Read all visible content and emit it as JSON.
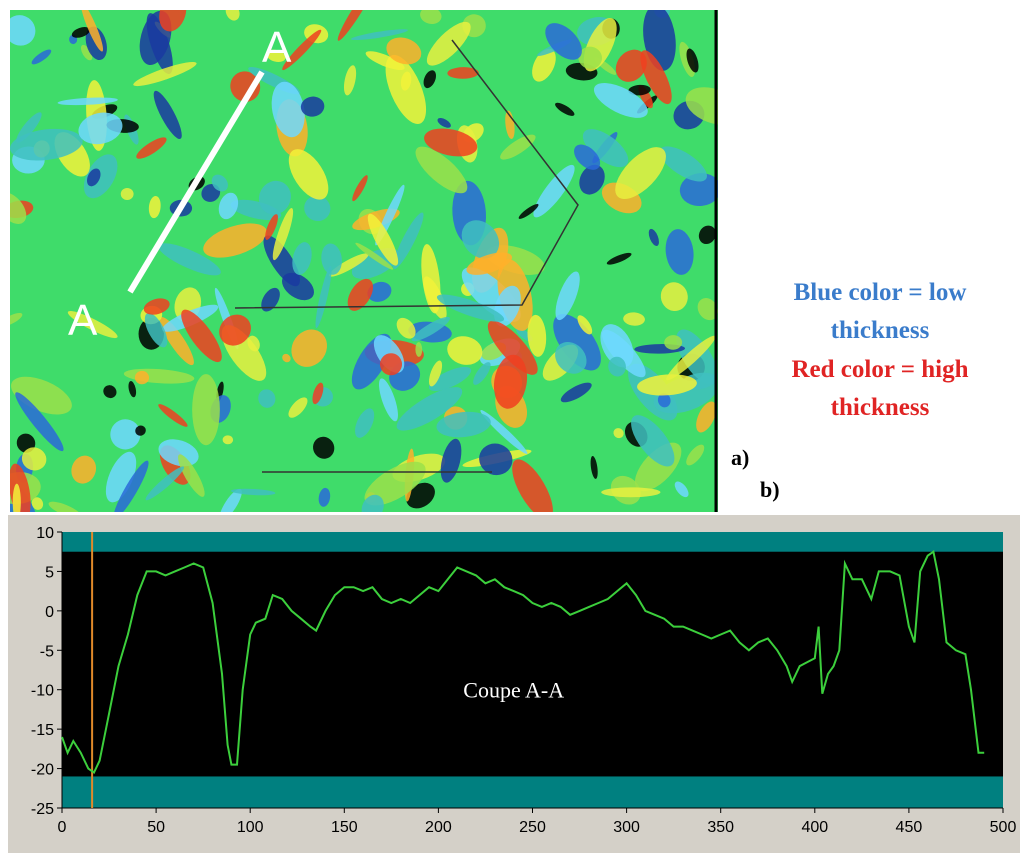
{
  "figure": {
    "map_labels": [
      "A",
      "A"
    ],
    "legend_blue": [
      "Blue color = low",
      "thickness"
    ],
    "legend_red": [
      "Red color = high",
      "thickness"
    ],
    "panel_a": "a)",
    "panel_b": "b)"
  },
  "chart_data": {
    "type": "line",
    "annotation": "Coupe A-A",
    "x": [
      0,
      3,
      6,
      10,
      14,
      17,
      20,
      25,
      30,
      35,
      40,
      45,
      50,
      55,
      60,
      65,
      70,
      75,
      80,
      85,
      88,
      90,
      93,
      96,
      100,
      103,
      108,
      112,
      117,
      122,
      127,
      132,
      135,
      140,
      145,
      150,
      155,
      160,
      165,
      170,
      175,
      180,
      185,
      190,
      195,
      200,
      205,
      210,
      215,
      220,
      225,
      230,
      235,
      240,
      245,
      250,
      255,
      260,
      265,
      270,
      275,
      280,
      285,
      290,
      295,
      300,
      305,
      310,
      315,
      320,
      325,
      330,
      335,
      340,
      345,
      350,
      355,
      360,
      365,
      370,
      375,
      380,
      385,
      388,
      392,
      396,
      400,
      402,
      404,
      407,
      410,
      413,
      416,
      420,
      425,
      430,
      434,
      440,
      445,
      450,
      453,
      456,
      460,
      463,
      466,
      470,
      475,
      480,
      483,
      487,
      490
    ],
    "series": [
      {
        "color": "#3ccf3c",
        "values": [
          -16,
          -18,
          -16.5,
          -18,
          -20,
          -20.5,
          -19,
          -13,
          -7,
          -3,
          2,
          5,
          5,
          4.5,
          5,
          5.5,
          6,
          5.5,
          1,
          -8,
          -17,
          -19.5,
          -19.5,
          -10,
          -3,
          -1.5,
          -1,
          2,
          1.5,
          0,
          -1,
          -2,
          -2.5,
          0,
          2,
          3,
          3,
          2.5,
          3,
          1.5,
          1,
          1.5,
          1,
          2,
          3,
          2.5,
          4,
          5.5,
          5,
          4.5,
          3.5,
          4,
          3,
          2.5,
          2,
          1,
          0.5,
          1,
          0.5,
          -0.5,
          0,
          0.5,
          1,
          1.5,
          2.5,
          3.5,
          2,
          0,
          -0.5,
          -1,
          -2,
          -2,
          -2.5,
          -3,
          -3.5,
          -3,
          -2.5,
          -4,
          -5,
          -4,
          -3.5,
          -5,
          -7,
          -9,
          -7,
          -6.5,
          -6,
          -2,
          -10.5,
          -8,
          -7,
          -5,
          6,
          4,
          4,
          1.5,
          5,
          5,
          4.5,
          -2,
          -4,
          5,
          7,
          7.5,
          4,
          -4,
          -5,
          -5.5,
          -10,
          -18,
          -18
        ]
      }
    ],
    "xlim": [
      0,
      500
    ],
    "ylim": [
      -25,
      10
    ],
    "xticks": [
      0,
      50,
      100,
      150,
      200,
      250,
      300,
      350,
      400,
      450,
      500
    ],
    "yticks": [
      10,
      5,
      0,
      -5,
      -10,
      -15,
      -20,
      -25
    ],
    "bands": [
      [
        7.5,
        10
      ],
      [
        -25,
        -21
      ]
    ],
    "band_color": "#008080",
    "plot_background": "#000000",
    "cursor_x": 16,
    "cursor_color": "#e08a2a"
  }
}
